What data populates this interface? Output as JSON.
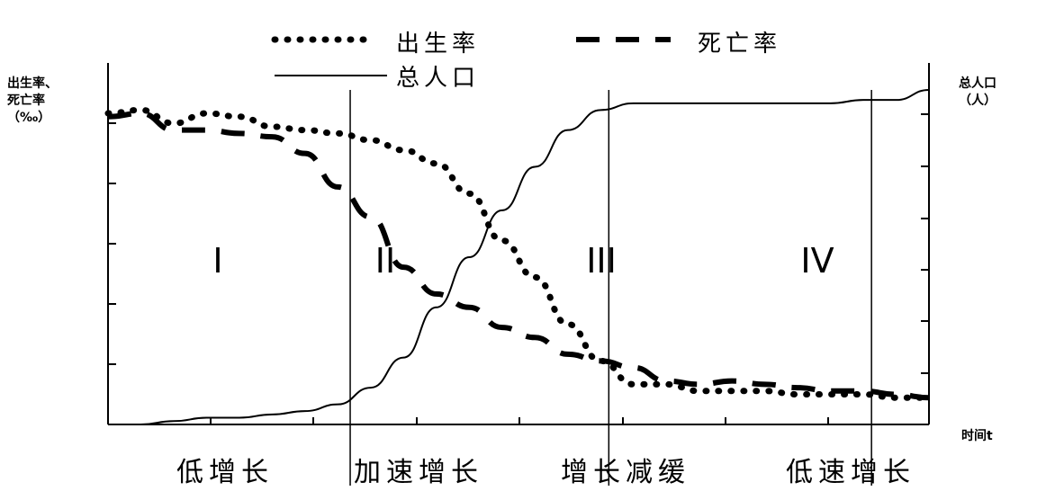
{
  "chart_data": {
    "type": "line",
    "legend": [
      {
        "label": "出生率",
        "style": "dotted"
      },
      {
        "label": "死亡率",
        "style": "dashed"
      },
      {
        "label": "总人口",
        "style": "solid"
      }
    ],
    "ylabel_left": [
      "出生率、",
      "死亡率",
      "（‰）"
    ],
    "ylabel_right": [
      "总人口",
      "（人）"
    ],
    "xlabel": "时间t",
    "stage_numerals": [
      "I",
      "II",
      "III",
      "IV"
    ],
    "stage_names": [
      "低增长",
      "加速增长",
      "增长减缓",
      "低速增长"
    ],
    "x": [
      0,
      0.04,
      0.08,
      0.12,
      0.16,
      0.2,
      0.24,
      0.28,
      0.32,
      0.36,
      0.4,
      0.44,
      0.48,
      0.52,
      0.56,
      0.6,
      0.64,
      0.68,
      0.72,
      0.76,
      0.8,
      0.84,
      0.88,
      0.92,
      0.96,
      1.0
    ],
    "series": [
      {
        "name": "出生率",
        "values": [
          0.93,
          0.94,
          0.9,
          0.93,
          0.92,
          0.89,
          0.88,
          0.87,
          0.85,
          0.82,
          0.78,
          0.69,
          0.55,
          0.44,
          0.3,
          0.19,
          0.12,
          0.12,
          0.1,
          0.1,
          0.1,
          0.09,
          0.09,
          0.09,
          0.08,
          0.08
        ]
      },
      {
        "name": "死亡率",
        "values": [
          0.92,
          0.93,
          0.88,
          0.88,
          0.87,
          0.86,
          0.81,
          0.71,
          0.62,
          0.47,
          0.39,
          0.35,
          0.29,
          0.26,
          0.21,
          0.19,
          0.17,
          0.13,
          0.12,
          0.13,
          0.12,
          0.11,
          0.1,
          0.1,
          0.09,
          0.08
        ]
      },
      {
        "name": "总人口",
        "values": [
          0.0,
          0.0,
          0.01,
          0.02,
          0.02,
          0.03,
          0.04,
          0.06,
          0.11,
          0.2,
          0.35,
          0.5,
          0.64,
          0.77,
          0.88,
          0.94,
          0.96,
          0.96,
          0.96,
          0.96,
          0.96,
          0.96,
          0.96,
          0.97,
          0.97,
          1.0
        ]
      }
    ],
    "stage_boundaries": [
      0.295,
      0.61,
      0.93
    ],
    "grid": false,
    "legend_position": "top-center"
  }
}
